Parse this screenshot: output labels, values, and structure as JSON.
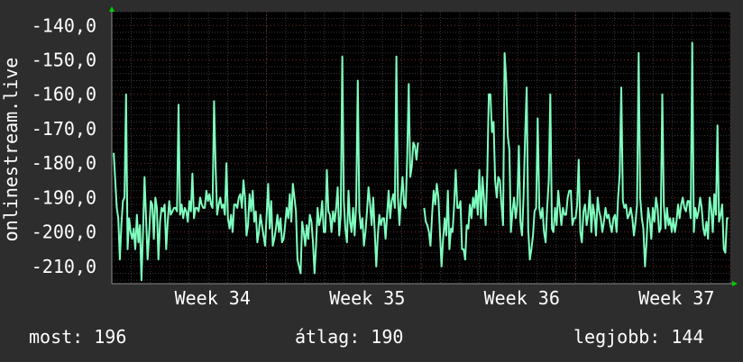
{
  "chart_data": {
    "type": "line",
    "ylabel": "onlinestream.live",
    "ylim": [
      -215,
      -136
    ],
    "yticks": [
      "-140,0",
      "-150,0",
      "-160,0",
      "-170,0",
      "-180,0",
      "-190,0",
      "-200,0",
      "-210,0"
    ],
    "ytick_values": [
      -140,
      -150,
      -160,
      -170,
      -180,
      -190,
      -200,
      -210
    ],
    "xticks": [
      "Week 34",
      "Week 35",
      "Week 36",
      "Week 37"
    ],
    "xtick_positions": [
      0.25,
      0.5,
      0.75,
      1.0
    ],
    "grid": true,
    "series": [
      {
        "color": "#7fffbf",
        "values": [
          -177,
          -185,
          -193,
          -196,
          -208,
          -198,
          -191,
          -190,
          -160,
          -205,
          -196,
          -200,
          -202,
          -199,
          -205,
          -195,
          -203,
          -198,
          -214,
          -200,
          -184,
          -196,
          -208,
          -200,
          -191,
          -192,
          -202,
          -190,
          -193,
          -208,
          -197,
          -193,
          -194,
          -192,
          -205,
          -197,
          -191,
          -195,
          -194,
          -193,
          -193,
          -194,
          -163,
          -195,
          -192,
          -196,
          -193,
          -194,
          -197,
          -191,
          -194,
          -183,
          -196,
          -193,
          -193,
          -194,
          -190,
          -192,
          -193,
          -193,
          -188,
          -191,
          -189,
          -192,
          -193,
          -162,
          -181,
          -195,
          -192,
          -190,
          -193,
          -192,
          -195,
          -180,
          -196,
          -199,
          -195,
          -200,
          -192,
          -192,
          -193,
          -190,
          -189,
          -193,
          -185,
          -190,
          -201,
          -198,
          -189,
          -194,
          -188,
          -197,
          -194,
          -203,
          -200,
          -195,
          -198,
          -201,
          -204,
          -195,
          -186,
          -199,
          -191,
          -204,
          -202,
          -199,
          -195,
          -200,
          -196,
          -203,
          -202,
          -198,
          -193,
          -196,
          -189,
          -197,
          -186,
          -190,
          -194,
          -208,
          -210,
          -212,
          -197,
          -200,
          -204,
          -198,
          -202,
          -195,
          -197,
          -203,
          -212,
          -204,
          -193,
          -198,
          -196,
          -191,
          -200,
          -200,
          -182,
          -194,
          -195,
          -200,
          -194,
          -197,
          -193,
          -187,
          -201,
          -195,
          -149,
          -191,
          -199,
          -203,
          -188,
          -197,
          -200,
          -193,
          -201,
          -192,
          -156,
          -194,
          -199,
          -196,
          -204,
          -200,
          -194,
          -187,
          -192,
          -198,
          -190,
          -200,
          -210,
          -201,
          -195,
          -198,
          -196,
          -196,
          -202,
          -195,
          -188,
          -196,
          -191,
          -189,
          -193,
          -149,
          -190,
          -198,
          -190,
          -184,
          -192,
          -193,
          -178,
          -157,
          -184,
          -181,
          -174,
          -175,
          -179,
          -174
        ]
      },
      {
        "color": "#7fffbf",
        "values": [
          -193,
          -197,
          -198,
          -200,
          -204,
          -195,
          -188,
          -192,
          -186,
          -190,
          -200,
          -210,
          -202,
          -196,
          -201,
          -188,
          -205,
          -199,
          -200,
          -192,
          -182,
          -193,
          -193,
          -191,
          -205,
          -205,
          -208,
          -198,
          -199,
          -192,
          -196,
          -190,
          -193,
          -188,
          -195,
          -182,
          -196,
          -184,
          -191,
          -198,
          -183,
          -160,
          -160,
          -171,
          -168,
          -185,
          -190,
          -184,
          -185,
          -192,
          -198,
          -148,
          -156,
          -172,
          -176,
          -200,
          -194,
          -190,
          -196,
          -192,
          -175,
          -197,
          -201,
          -190,
          -172,
          -158,
          -199,
          -208,
          -205,
          -201,
          -194,
          -193,
          -167,
          -193,
          -196,
          -193,
          -200,
          -203,
          -193,
          -185,
          -160,
          -199,
          -200,
          -193,
          -198,
          -188,
          -193,
          -198,
          -193,
          -195,
          -195,
          -190,
          -188,
          -188,
          -198,
          -196,
          -196,
          -192,
          -179,
          -200,
          -203,
          -194,
          -192,
          -198,
          -195,
          -188,
          -200,
          -192,
          -195,
          -201,
          -190,
          -194,
          -196,
          -200,
          -197,
          -193,
          -196,
          -195,
          -198,
          -200,
          -196,
          -195,
          -200,
          -190,
          -183,
          -158,
          -191,
          -193,
          -192,
          -196,
          -195,
          -193,
          -196,
          -201,
          -197,
          -192,
          -148,
          -190,
          -196,
          -199,
          -210,
          -203,
          -193,
          -196,
          -202,
          -193,
          -197,
          -190,
          -193,
          -200,
          -199,
          -160,
          -192,
          -199,
          -193,
          -198,
          -196,
          -200,
          -196,
          -200,
          -197,
          -192,
          -196,
          -192,
          -190,
          -193,
          -194,
          -191,
          -191,
          -196,
          -145,
          -200,
          -193,
          -196,
          -194,
          -190,
          -193,
          -199,
          -201,
          -197,
          -202,
          -190,
          -193,
          -200,
          -189,
          -195,
          -169,
          -197,
          -195,
          -192,
          -205,
          -206,
          -196,
          -196
        ]
      }
    ]
  },
  "footer": {
    "current_label": "most:",
    "current_value": "196",
    "average_label": "átlag:",
    "average_value": "190",
    "best_label": "legjobb:",
    "best_value": "144"
  }
}
